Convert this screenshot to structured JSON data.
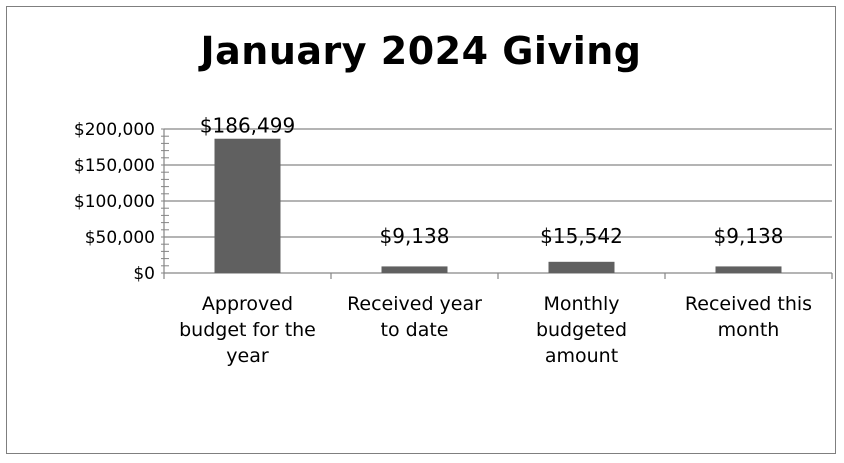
{
  "chart_data": {
    "type": "bar",
    "title": "January 2024 Giving",
    "categories": [
      [
        "Approved",
        "budget for the",
        "year"
      ],
      [
        "Received year",
        "to date"
      ],
      [
        "Monthly",
        "budgeted",
        "amount"
      ],
      [
        "Received this",
        "month"
      ]
    ],
    "values": [
      186499,
      9138,
      15542,
      9138
    ],
    "data_labels": [
      "$186,499",
      "$9,138",
      "$15,542",
      "$9,138"
    ],
    "ylim": [
      0,
      200000
    ],
    "y_ticks": [
      0,
      50000,
      100000,
      150000,
      200000
    ],
    "y_tick_labels": [
      "$0",
      "$50,000",
      "$100,000",
      "$150,000",
      "$200,000"
    ],
    "grid": true,
    "bar_color": "#606060",
    "grid_color": "#868686"
  }
}
